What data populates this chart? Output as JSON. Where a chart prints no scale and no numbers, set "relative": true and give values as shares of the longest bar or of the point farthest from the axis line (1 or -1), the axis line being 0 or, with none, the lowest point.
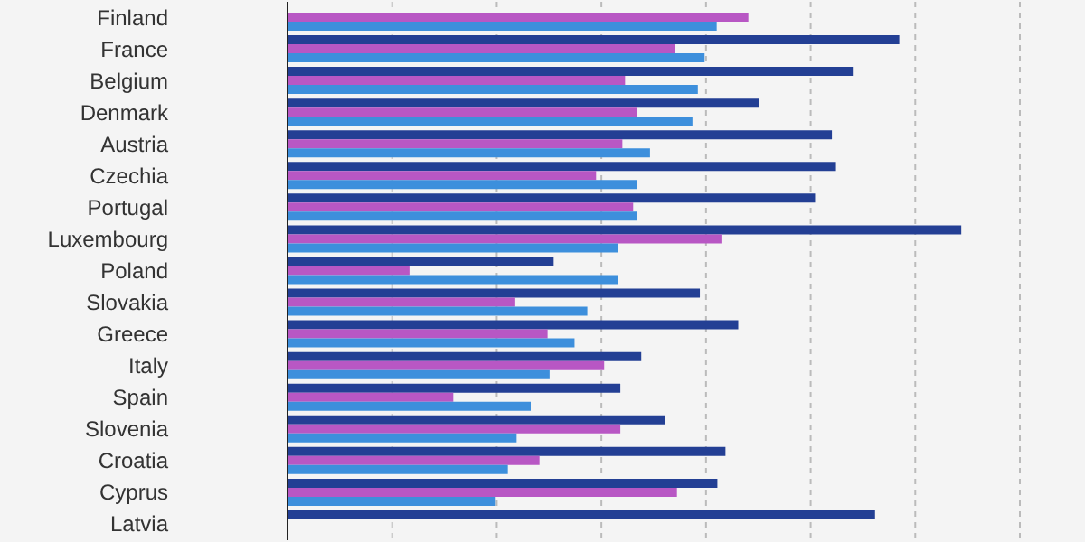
{
  "chart_data": {
    "type": "bar",
    "orientation": "horizontal",
    "relative": true,
    "grid": "x",
    "legend": false,
    "categories": [
      "Finland",
      "France",
      "Belgium",
      "Denmark",
      "Austria",
      "Czechia",
      "Portugal",
      "Luxembourg",
      "Poland",
      "Slovakia",
      "Greece",
      "Italy",
      "Spain",
      "Slovenia",
      "Croatia",
      "Cyprus",
      "Latvia"
    ],
    "series": [
      {
        "color": "#233f94",
        "values": [
          null,
          0.908,
          0.839,
          0.7,
          0.808,
          0.814,
          0.783,
          1,
          0.395,
          0.612,
          0.669,
          0.525,
          0.494,
          0.56,
          0.65,
          0.638,
          0.872
        ]
      },
      {
        "color": "#b857c4",
        "values": [
          0.684,
          0.575,
          0.501,
          0.519,
          0.497,
          0.458,
          0.513,
          0.644,
          0.181,
          0.338,
          0.386,
          0.47,
          0.246,
          0.494,
          0.374,
          0.578,
          null
        ]
      },
      {
        "color": "#3d8fdc",
        "values": [
          0.637,
          0.619,
          0.609,
          0.601,
          0.538,
          0.519,
          0.519,
          0.491,
          0.491,
          0.445,
          0.426,
          0.389,
          0.361,
          0.34,
          0.327,
          0.309,
          null
        ]
      }
    ]
  }
}
